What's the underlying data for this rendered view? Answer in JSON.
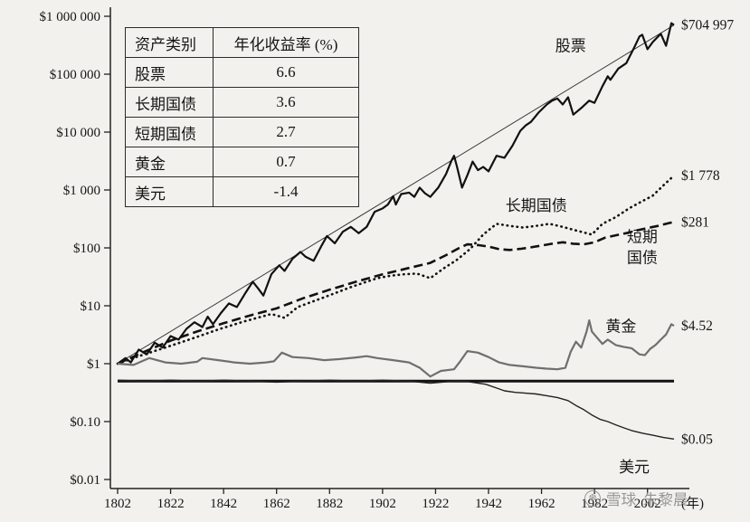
{
  "table": {
    "headers": [
      "资产类别",
      "年化收益率 (%)"
    ],
    "rows": [
      {
        "asset": "股票",
        "return": "6.6"
      },
      {
        "asset": "长期国债",
        "return": "3.6"
      },
      {
        "asset": "短期国债",
        "return": "2.7"
      },
      {
        "asset": "黄金",
        "return": "0.7"
      },
      {
        "asset": "美元",
        "return": "-1.4"
      }
    ]
  },
  "watermark": {
    "brand": "雪球",
    "author": "朱黎晨"
  },
  "chart_data": {
    "type": "line",
    "title": "",
    "xlabel": "(年)",
    "ylabel": "",
    "grid": false,
    "legend_position": "inline-annotations",
    "x_axis": {
      "min": 1802,
      "max": 2012,
      "ticks": [
        1802,
        1822,
        1842,
        1862,
        1882,
        1902,
        1922,
        1942,
        1962,
        1982,
        2002
      ],
      "unit_label": "(年)"
    },
    "y_axis": {
      "scale": "log10",
      "min": 0.01,
      "max": 1000000,
      "ticks": [
        {
          "value": 1000000,
          "label": "$1 000 000"
        },
        {
          "value": 100000,
          "label": "$100 000"
        },
        {
          "value": 10000,
          "label": "$10 000"
        },
        {
          "value": 1000,
          "label": "$1 000"
        },
        {
          "value": 100,
          "label": "$100"
        },
        {
          "value": 10,
          "label": "$10"
        },
        {
          "value": 1,
          "label": "$1"
        },
        {
          "value": 0.1,
          "label": "$0.10"
        },
        {
          "value": 0.01,
          "label": "$0.01"
        }
      ]
    },
    "series": [
      {
        "id": "trend",
        "label": "",
        "style": "solid",
        "width": 1,
        "color": "#3a3a3a",
        "points": [
          [
            1802,
            1
          ],
          [
            2012,
            704997
          ]
        ]
      },
      {
        "id": "stocks",
        "label": "股票",
        "annualized_return_pct": 6.6,
        "style": "solid",
        "width": 2.2,
        "color": "#111111",
        "end_value": 704997,
        "points": [
          [
            1802,
            1
          ],
          [
            1805,
            1.25
          ],
          [
            1807,
            1.05
          ],
          [
            1810,
            1.75
          ],
          [
            1813,
            1.45
          ],
          [
            1816,
            2.3
          ],
          [
            1819,
            1.9
          ],
          [
            1822,
            3
          ],
          [
            1825,
            2.6
          ],
          [
            1828,
            4
          ],
          [
            1831,
            5.2
          ],
          [
            1834,
            4.3
          ],
          [
            1836,
            6.5
          ],
          [
            1838,
            4.8
          ],
          [
            1841,
            7.5
          ],
          [
            1844,
            11
          ],
          [
            1847,
            9.5
          ],
          [
            1850,
            16
          ],
          [
            1853,
            26
          ],
          [
            1855,
            20
          ],
          [
            1857,
            15
          ],
          [
            1860,
            35
          ],
          [
            1863,
            50
          ],
          [
            1865,
            40
          ],
          [
            1868,
            65
          ],
          [
            1871,
            85
          ],
          [
            1873,
            70
          ],
          [
            1876,
            60
          ],
          [
            1879,
            110
          ],
          [
            1881,
            160
          ],
          [
            1884,
            120
          ],
          [
            1887,
            190
          ],
          [
            1890,
            230
          ],
          [
            1893,
            180
          ],
          [
            1896,
            230
          ],
          [
            1899,
            420
          ],
          [
            1902,
            480
          ],
          [
            1904,
            560
          ],
          [
            1906,
            780
          ],
          [
            1907,
            560
          ],
          [
            1909,
            850
          ],
          [
            1912,
            900
          ],
          [
            1914,
            760
          ],
          [
            1916,
            1100
          ],
          [
            1918,
            880
          ],
          [
            1920,
            760
          ],
          [
            1923,
            1100
          ],
          [
            1926,
            1900
          ],
          [
            1928,
            3200
          ],
          [
            1929,
            3900
          ],
          [
            1930,
            2600
          ],
          [
            1932,
            1100
          ],
          [
            1934,
            1800
          ],
          [
            1936,
            3100
          ],
          [
            1938,
            2200
          ],
          [
            1940,
            2500
          ],
          [
            1942,
            2100
          ],
          [
            1945,
            3900
          ],
          [
            1948,
            3600
          ],
          [
            1951,
            5800
          ],
          [
            1954,
            10500
          ],
          [
            1956,
            13000
          ],
          [
            1958,
            15000
          ],
          [
            1961,
            22000
          ],
          [
            1964,
            30000
          ],
          [
            1966,
            35000
          ],
          [
            1968,
            38000
          ],
          [
            1970,
            30000
          ],
          [
            1972,
            40000
          ],
          [
            1974,
            20000
          ],
          [
            1977,
            26000
          ],
          [
            1980,
            35000
          ],
          [
            1982,
            32000
          ],
          [
            1985,
            62000
          ],
          [
            1987,
            92000
          ],
          [
            1988,
            80000
          ],
          [
            1991,
            125000
          ],
          [
            1994,
            155000
          ],
          [
            1997,
            290000
          ],
          [
            1999,
            450000
          ],
          [
            2000,
            480000
          ],
          [
            2002,
            270000
          ],
          [
            2004,
            360000
          ],
          [
            2007,
            500000
          ],
          [
            2009,
            310000
          ],
          [
            2011,
            760000
          ],
          [
            2012,
            704997
          ]
        ]
      },
      {
        "id": "long-bonds",
        "label": "长期国债",
        "annualized_return_pct": 3.6,
        "style": "dotted",
        "width": 2.6,
        "color": "#111111",
        "end_value": 1778,
        "points": [
          [
            1802,
            1
          ],
          [
            1810,
            1.35
          ],
          [
            1820,
            1.9
          ],
          [
            1830,
            2.7
          ],
          [
            1840,
            3.9
          ],
          [
            1850,
            5.4
          ],
          [
            1860,
            7.2
          ],
          [
            1865,
            6.2
          ],
          [
            1870,
            9.5
          ],
          [
            1880,
            14
          ],
          [
            1890,
            21
          ],
          [
            1900,
            30
          ],
          [
            1905,
            33
          ],
          [
            1910,
            35
          ],
          [
            1915,
            36
          ],
          [
            1920,
            30
          ],
          [
            1925,
            44
          ],
          [
            1930,
            62
          ],
          [
            1935,
            95
          ],
          [
            1940,
            170
          ],
          [
            1945,
            260
          ],
          [
            1950,
            240
          ],
          [
            1955,
            225
          ],
          [
            1960,
            240
          ],
          [
            1965,
            260
          ],
          [
            1970,
            230
          ],
          [
            1975,
            200
          ],
          [
            1981,
            170
          ],
          [
            1985,
            260
          ],
          [
            1990,
            340
          ],
          [
            1995,
            480
          ],
          [
            2000,
            640
          ],
          [
            2004,
            800
          ],
          [
            2008,
            1200
          ],
          [
            2012,
            1778
          ]
        ]
      },
      {
        "id": "short-bonds",
        "label": "短期国债",
        "annualized_return_pct": 2.7,
        "style": "dashed",
        "width": 2.6,
        "color": "#111111",
        "end_value": 281,
        "points": [
          [
            1802,
            1
          ],
          [
            1812,
            1.6
          ],
          [
            1822,
            2.5
          ],
          [
            1832,
            3.6
          ],
          [
            1842,
            5
          ],
          [
            1852,
            6.8
          ],
          [
            1862,
            9
          ],
          [
            1872,
            13.5
          ],
          [
            1882,
            19
          ],
          [
            1892,
            26
          ],
          [
            1902,
            35
          ],
          [
            1912,
            45
          ],
          [
            1920,
            55
          ],
          [
            1926,
            75
          ],
          [
            1931,
            100
          ],
          [
            1934,
            115
          ],
          [
            1938,
            112
          ],
          [
            1942,
            105
          ],
          [
            1946,
            95
          ],
          [
            1950,
            92
          ],
          [
            1954,
            96
          ],
          [
            1958,
            102
          ],
          [
            1962,
            110
          ],
          [
            1966,
            118
          ],
          [
            1970,
            125
          ],
          [
            1974,
            118
          ],
          [
            1978,
            115
          ],
          [
            1982,
            125
          ],
          [
            1986,
            150
          ],
          [
            1990,
            165
          ],
          [
            1994,
            180
          ],
          [
            1998,
            200
          ],
          [
            2002,
            220
          ],
          [
            2006,
            240
          ],
          [
            2009,
            260
          ],
          [
            2012,
            281
          ]
        ]
      },
      {
        "id": "gold",
        "label": "黄金",
        "annualized_return_pct": 0.7,
        "style": "solid",
        "width": 2.2,
        "color": "#6f6f6f",
        "end_value": 4.52,
        "points": [
          [
            1802,
            1
          ],
          [
            1808,
            0.95
          ],
          [
            1814,
            1.25
          ],
          [
            1820,
            1.05
          ],
          [
            1826,
            1
          ],
          [
            1832,
            1.08
          ],
          [
            1834,
            1.25
          ],
          [
            1840,
            1.15
          ],
          [
            1846,
            1.05
          ],
          [
            1852,
            1
          ],
          [
            1858,
            1.05
          ],
          [
            1861,
            1.1
          ],
          [
            1864,
            1.55
          ],
          [
            1868,
            1.3
          ],
          [
            1874,
            1.25
          ],
          [
            1880,
            1.15
          ],
          [
            1886,
            1.2
          ],
          [
            1892,
            1.28
          ],
          [
            1896,
            1.35
          ],
          [
            1900,
            1.25
          ],
          [
            1906,
            1.15
          ],
          [
            1912,
            1.05
          ],
          [
            1916,
            0.85
          ],
          [
            1920,
            0.6
          ],
          [
            1924,
            0.75
          ],
          [
            1929,
            0.8
          ],
          [
            1931,
            1.05
          ],
          [
            1934,
            1.65
          ],
          [
            1938,
            1.55
          ],
          [
            1942,
            1.3
          ],
          [
            1946,
            1.05
          ],
          [
            1950,
            0.95
          ],
          [
            1955,
            0.9
          ],
          [
            1960,
            0.85
          ],
          [
            1964,
            0.82
          ],
          [
            1968,
            0.8
          ],
          [
            1971,
            0.85
          ],
          [
            1973,
            1.6
          ],
          [
            1975,
            2.4
          ],
          [
            1977,
            1.9
          ],
          [
            1979,
            3.6
          ],
          [
            1980,
            5.6
          ],
          [
            1981,
            3.6
          ],
          [
            1983,
            2.8
          ],
          [
            1985,
            2.2
          ],
          [
            1987,
            2.6
          ],
          [
            1990,
            2.1
          ],
          [
            1993,
            1.95
          ],
          [
            1996,
            1.85
          ],
          [
            1999,
            1.45
          ],
          [
            2001,
            1.4
          ],
          [
            2003,
            1.8
          ],
          [
            2005,
            2.1
          ],
          [
            2007,
            2.6
          ],
          [
            2009,
            3.2
          ],
          [
            2011,
            4.8
          ],
          [
            2012,
            4.52
          ]
        ]
      },
      {
        "id": "dollar-flat-line",
        "label": "",
        "style": "solid",
        "width": 3,
        "color": "#111111",
        "points": [
          [
            1802,
            0.5
          ],
          [
            2012,
            0.5
          ]
        ]
      },
      {
        "id": "dollar",
        "label": "美元",
        "annualized_return_pct": -1.4,
        "style": "solid",
        "width": 1.4,
        "color": "#222222",
        "end_value": 0.05,
        "points": [
          [
            1802,
            0.52
          ],
          [
            1812,
            0.5
          ],
          [
            1822,
            0.52
          ],
          [
            1832,
            0.5
          ],
          [
            1842,
            0.52
          ],
          [
            1852,
            0.5
          ],
          [
            1862,
            0.48
          ],
          [
            1872,
            0.5
          ],
          [
            1882,
            0.52
          ],
          [
            1892,
            0.5
          ],
          [
            1902,
            0.52
          ],
          [
            1912,
            0.5
          ],
          [
            1920,
            0.46
          ],
          [
            1929,
            0.5
          ],
          [
            1933,
            0.5
          ],
          [
            1937,
            0.47
          ],
          [
            1941,
            0.44
          ],
          [
            1945,
            0.38
          ],
          [
            1948,
            0.34
          ],
          [
            1952,
            0.32
          ],
          [
            1956,
            0.31
          ],
          [
            1960,
            0.3
          ],
          [
            1964,
            0.28
          ],
          [
            1968,
            0.26
          ],
          [
            1972,
            0.23
          ],
          [
            1975,
            0.19
          ],
          [
            1978,
            0.16
          ],
          [
            1981,
            0.13
          ],
          [
            1984,
            0.11
          ],
          [
            1987,
            0.1
          ],
          [
            1990,
            0.088
          ],
          [
            1993,
            0.078
          ],
          [
            1996,
            0.07
          ],
          [
            2000,
            0.063
          ],
          [
            2004,
            0.058
          ],
          [
            2008,
            0.053
          ],
          [
            2012,
            0.05
          ]
        ]
      }
    ],
    "end_labels": [
      {
        "text": "$704 997",
        "value": 704997
      },
      {
        "text": "$1 778",
        "value": 1778
      },
      {
        "text": "$281",
        "value": 281
      },
      {
        "text": "$4.52",
        "value": 4.52
      },
      {
        "text": "$0.05",
        "value": 0.05
      }
    ],
    "annotations": [
      {
        "id": "stocks-label",
        "lines": [
          "股票"
        ],
        "year": 1973,
        "value": 300000
      },
      {
        "id": "long-bonds-label",
        "lines": [
          "长期国债"
        ],
        "year": 1960,
        "value": 520
      },
      {
        "id": "short-bonds-label",
        "lines": [
          "短期",
          "国债"
        ],
        "year": 2000,
        "value": 150
      },
      {
        "id": "gold-label",
        "lines": [
          "黄金"
        ],
        "year": 1992,
        "value": 4.3
      },
      {
        "id": "dollar-label",
        "lines": [
          "美元"
        ],
        "year": 1997,
        "value": 0.016
      }
    ]
  }
}
